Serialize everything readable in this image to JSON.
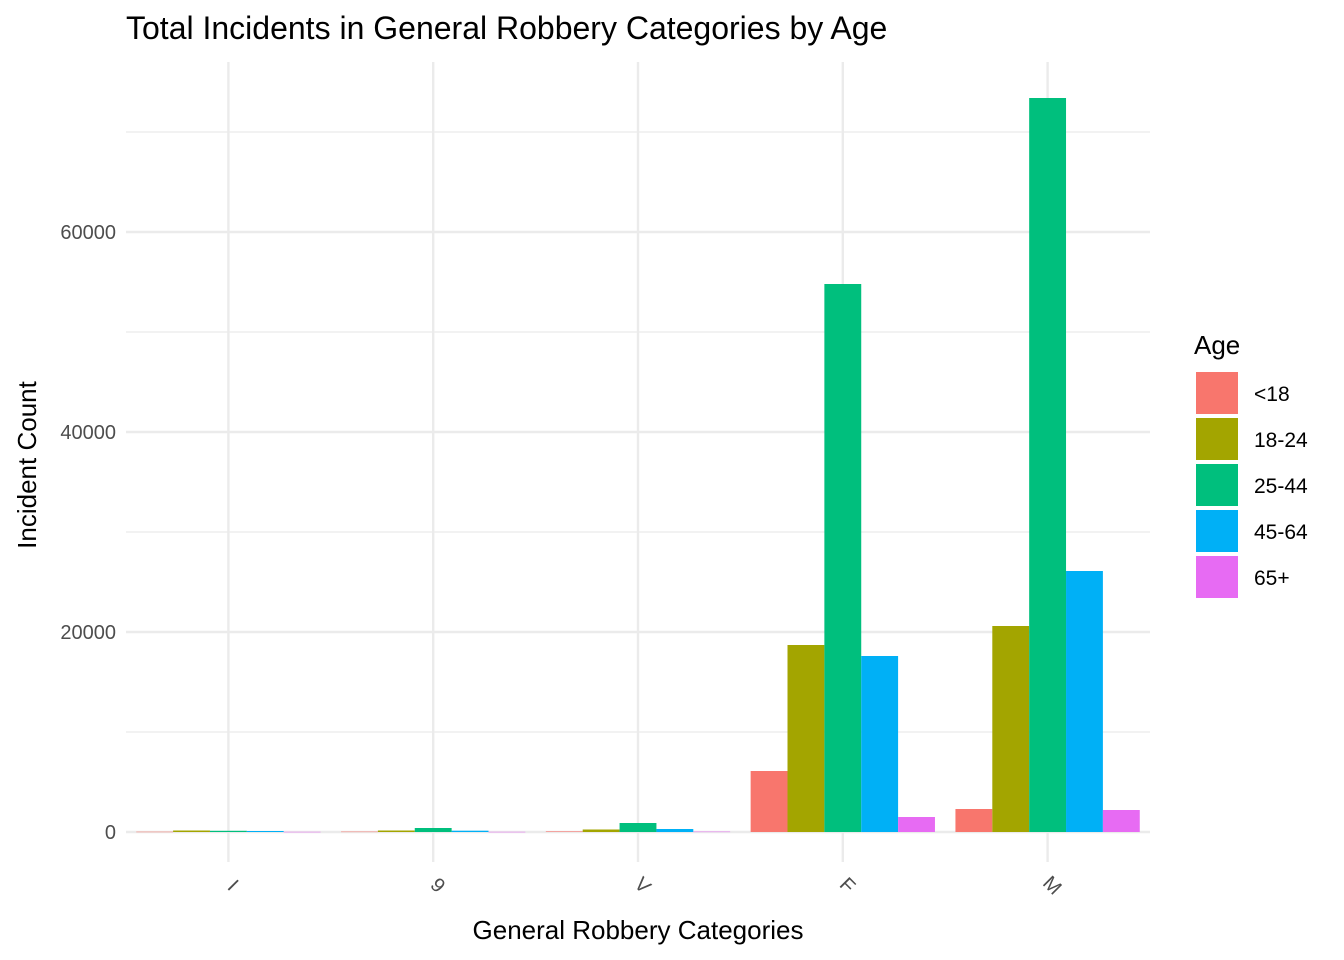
{
  "chart_data": {
    "type": "bar",
    "title": "Total Incidents in General Robbery Categories by Age",
    "xlabel": "General Robbery Categories",
    "ylabel": "Incident Count",
    "categories": [
      "I",
      "9",
      "V",
      "F",
      "M"
    ],
    "series": [
      {
        "name": "<18",
        "color": "#F8766D",
        "values": [
          30,
          40,
          60,
          6100,
          2300
        ]
      },
      {
        "name": "18-24",
        "color": "#A3A500",
        "values": [
          150,
          150,
          250,
          18700,
          20600
        ]
      },
      {
        "name": "25-44",
        "color": "#00BF7D",
        "values": [
          120,
          400,
          900,
          54800,
          73400
        ]
      },
      {
        "name": "45-64",
        "color": "#00B0F6",
        "values": [
          100,
          130,
          300,
          17600,
          26100
        ]
      },
      {
        "name": "65+",
        "color": "#E76BF3",
        "values": [
          20,
          20,
          40,
          1500,
          2200
        ]
      }
    ],
    "y_ticks": [
      0,
      20000,
      40000,
      60000
    ],
    "ylim": [
      -3000,
      77000
    ],
    "grid": true,
    "legend": {
      "title": "Age",
      "placement": "right"
    }
  }
}
